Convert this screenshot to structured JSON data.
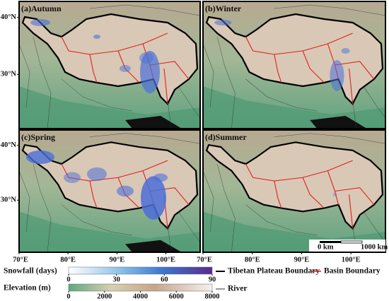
{
  "panels": [
    "(a)Autumn",
    "(b)Winter",
    "(c)Spring",
    "(d)Summer"
  ],
  "map": {
    "xlim": [
      70,
      107
    ],
    "ylim": [
      20.5,
      42.8
    ],
    "xticks": [
      {
        "value": 70,
        "label": "70°E"
      },
      {
        "value": 80,
        "label": "80°E"
      },
      {
        "value": 90,
        "label": "90°E"
      },
      {
        "value": 100,
        "label": "100°E"
      }
    ],
    "yticks": [
      {
        "value": 40,
        "label": "40°N"
      },
      {
        "value": 30,
        "label": "30°N"
      }
    ]
  },
  "scale_bar": {
    "start": "0 km",
    "end": "1000 km"
  },
  "snowfall": {
    "title": "Snowfall (days)",
    "range": [
      0,
      90
    ],
    "ticks": [
      0,
      30,
      60,
      90
    ]
  },
  "elevation": {
    "title": "Elevation (m)",
    "range": [
      0,
      8000
    ],
    "ticks": [
      0,
      2000,
      4000,
      6000,
      8000
    ]
  },
  "legend": {
    "plateau": "Tibetan Plateau Boundary",
    "basin": "Basin Boundary",
    "river": "River"
  }
}
